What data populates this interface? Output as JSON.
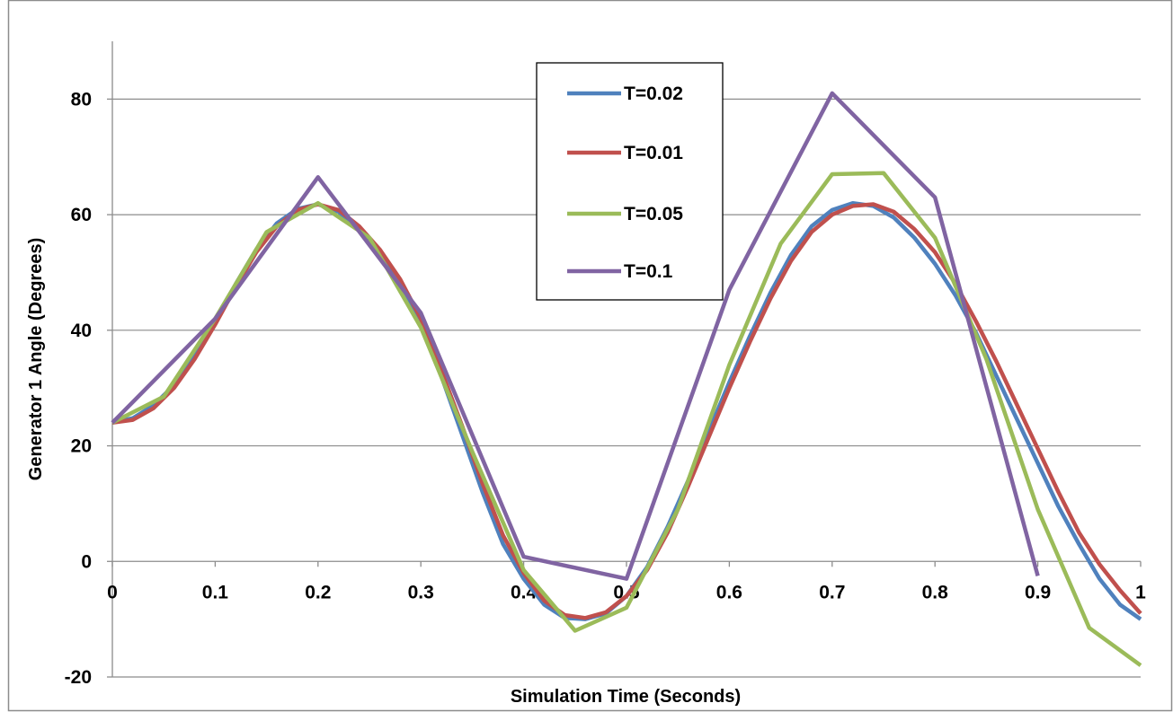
{
  "chart_data": {
    "type": "line",
    "title": "",
    "xlabel": "Simulation Time (Seconds)",
    "ylabel": "Generator 1 Angle (Degrees)",
    "xlim": [
      0,
      1
    ],
    "ylim": [
      -20,
      90
    ],
    "x_ticks": [
      0,
      0.1,
      0.2,
      0.3,
      0.4,
      0.5,
      0.6,
      0.7,
      0.8,
      0.9,
      1
    ],
    "x_tick_labels": [
      "0",
      "0.1",
      "0.2",
      "0.3",
      "0.4",
      "0.5",
      "0.6",
      "0.7",
      "0.8",
      "0.9",
      "1"
    ],
    "y_ticks": [
      -20,
      0,
      20,
      40,
      60,
      80
    ],
    "y_tick_labels": [
      "-20",
      "0",
      "20",
      "40",
      "60",
      "80"
    ],
    "grid": "horizontal",
    "legend_position": "top-center",
    "series": [
      {
        "name": "T=0.02",
        "color": "#4F81BD",
        "x": [
          0,
          0.02,
          0.04,
          0.06,
          0.08,
          0.1,
          0.12,
          0.14,
          0.16,
          0.18,
          0.2,
          0.22,
          0.24,
          0.26,
          0.28,
          0.3,
          0.32,
          0.34,
          0.36,
          0.38,
          0.4,
          0.42,
          0.44,
          0.46,
          0.48,
          0.5,
          0.52,
          0.54,
          0.56,
          0.58,
          0.6,
          0.62,
          0.64,
          0.66,
          0.68,
          0.7,
          0.72,
          0.74,
          0.76,
          0.78,
          0.8,
          0.82,
          0.84,
          0.86,
          0.88,
          0.9,
          0.92,
          0.94,
          0.96,
          0.98,
          1.0
        ],
        "y": [
          24,
          24.8,
          27,
          30.5,
          35.5,
          41.5,
          48,
          54,
          58.5,
          61,
          61.8,
          60.5,
          57.5,
          53,
          47.5,
          41,
          32,
          22,
          12,
          3,
          -3,
          -7.5,
          -9.8,
          -10,
          -9,
          -6,
          -1,
          6,
          14,
          22.5,
          31,
          39,
          46.5,
          53,
          58,
          60.8,
          62,
          61.5,
          59.5,
          56,
          51.5,
          46,
          39.5,
          32,
          24.5,
          17,
          9.5,
          3,
          -3,
          -7.5,
          -10
        ]
      },
      {
        "name": "T=0.01",
        "color": "#C0504D",
        "x": [
          0,
          0.02,
          0.04,
          0.06,
          0.08,
          0.1,
          0.12,
          0.14,
          0.16,
          0.18,
          0.2,
          0.22,
          0.24,
          0.26,
          0.28,
          0.3,
          0.32,
          0.34,
          0.36,
          0.38,
          0.4,
          0.42,
          0.44,
          0.46,
          0.48,
          0.5,
          0.52,
          0.54,
          0.56,
          0.58,
          0.6,
          0.62,
          0.64,
          0.66,
          0.68,
          0.7,
          0.72,
          0.74,
          0.76,
          0.78,
          0.8,
          0.82,
          0.84,
          0.86,
          0.88,
          0.9,
          0.92,
          0.94,
          0.96,
          0.98,
          1.0
        ],
        "y": [
          24,
          24.5,
          26.5,
          30,
          35,
          41,
          47.5,
          53.5,
          58,
          60.8,
          61.8,
          60.8,
          58,
          54,
          48.8,
          42,
          33,
          23.5,
          13.5,
          4.5,
          -2,
          -6.8,
          -9.3,
          -9.8,
          -8.8,
          -6,
          -1.5,
          5,
          13,
          21.5,
          30,
          38,
          45.5,
          52,
          57,
          60,
          61.5,
          61.8,
          60.5,
          57.5,
          53.5,
          48,
          41.5,
          34.5,
          27,
          19.5,
          12,
          5,
          -0.5,
          -5,
          -9
        ]
      },
      {
        "name": "T=0.05",
        "color": "#9BBB59",
        "x": [
          0,
          0.05,
          0.1,
          0.15,
          0.2,
          0.25,
          0.3,
          0.35,
          0.4,
          0.45,
          0.5,
          0.55,
          0.6,
          0.65,
          0.7,
          0.75,
          0.8,
          0.85,
          0.9,
          0.95,
          1.0
        ],
        "y": [
          24,
          28.5,
          42,
          57,
          62,
          56,
          40.5,
          19,
          -1.5,
          -12,
          -8,
          9,
          34,
          55,
          67,
          67.2,
          56,
          35,
          9,
          -11.5,
          -18
        ]
      },
      {
        "name": "T=0.1",
        "color": "#8064A2",
        "x": [
          0,
          0.1,
          0.2,
          0.3,
          0.4,
          0.5,
          0.6,
          0.7,
          0.8,
          0.9
        ],
        "y": [
          24,
          42,
          66.5,
          43,
          0.8,
          -3,
          47,
          81,
          63,
          -2.5
        ]
      }
    ]
  }
}
